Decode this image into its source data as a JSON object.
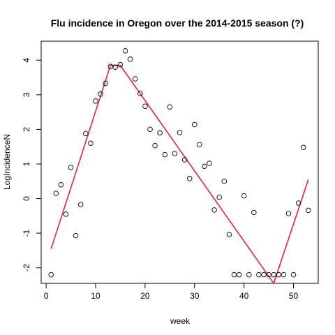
{
  "chart_data": {
    "type": "scatter",
    "title": "Flu incidence in Oregon over the 2014-2015 season (?)",
    "xlabel": "week",
    "ylabel": "LogIncidenceN",
    "xlim": [
      -1,
      55
    ],
    "ylim": [
      -2.45,
      4.55
    ],
    "x_ticks": [
      0,
      10,
      20,
      30,
      40,
      50
    ],
    "y_ticks": [
      -2,
      -1,
      0,
      1,
      2,
      3,
      4
    ],
    "grid": false,
    "series": [
      {
        "kind": "points",
        "marker": "open-circle",
        "color": "#000000",
        "points": [
          [
            1,
            -2.2
          ],
          [
            2,
            0.15
          ],
          [
            3,
            0.4
          ],
          [
            4,
            -0.45
          ],
          [
            5,
            0.9
          ],
          [
            6,
            -1.07
          ],
          [
            7,
            -0.17
          ],
          [
            8,
            1.88
          ],
          [
            9,
            1.6
          ],
          [
            10,
            2.82
          ],
          [
            11,
            3.02
          ],
          [
            12,
            3.33
          ],
          [
            13,
            3.82
          ],
          [
            14,
            3.8
          ],
          [
            15,
            3.87
          ],
          [
            16,
            4.27
          ],
          [
            17,
            4.03
          ],
          [
            18,
            3.46
          ],
          [
            19,
            3.04
          ],
          [
            20,
            2.67
          ],
          [
            21,
            2.0
          ],
          [
            22,
            1.53
          ],
          [
            23,
            1.9
          ],
          [
            24,
            1.27
          ],
          [
            25,
            2.65
          ],
          [
            26,
            1.3
          ],
          [
            27,
            1.91
          ],
          [
            28,
            1.12
          ],
          [
            29,
            0.58
          ],
          [
            30,
            2.14
          ],
          [
            31,
            1.56
          ],
          [
            32,
            0.93
          ],
          [
            33,
            1.02
          ],
          [
            34,
            -0.33
          ],
          [
            35,
            0.04
          ],
          [
            36,
            0.5
          ],
          [
            37,
            -1.04
          ],
          [
            38,
            -2.2
          ],
          [
            39,
            -2.2
          ],
          [
            40,
            0.08
          ],
          [
            41,
            -2.2
          ],
          [
            42,
            -0.4
          ],
          [
            43,
            -2.2
          ],
          [
            44,
            -2.2
          ],
          [
            45,
            -2.2
          ],
          [
            46,
            -2.2
          ],
          [
            47,
            -2.2
          ],
          [
            48,
            -2.2
          ],
          [
            49,
            -0.43
          ],
          [
            50,
            -2.2
          ],
          [
            51,
            -0.13
          ],
          [
            52,
            1.48
          ],
          [
            53,
            -0.34
          ]
        ]
      },
      {
        "kind": "line",
        "color": "#d3395f",
        "points": [
          [
            1,
            -1.45
          ],
          [
            13,
            3.85
          ],
          [
            15,
            3.85
          ],
          [
            46,
            -2.45
          ],
          [
            53,
            0.55
          ]
        ]
      }
    ]
  }
}
